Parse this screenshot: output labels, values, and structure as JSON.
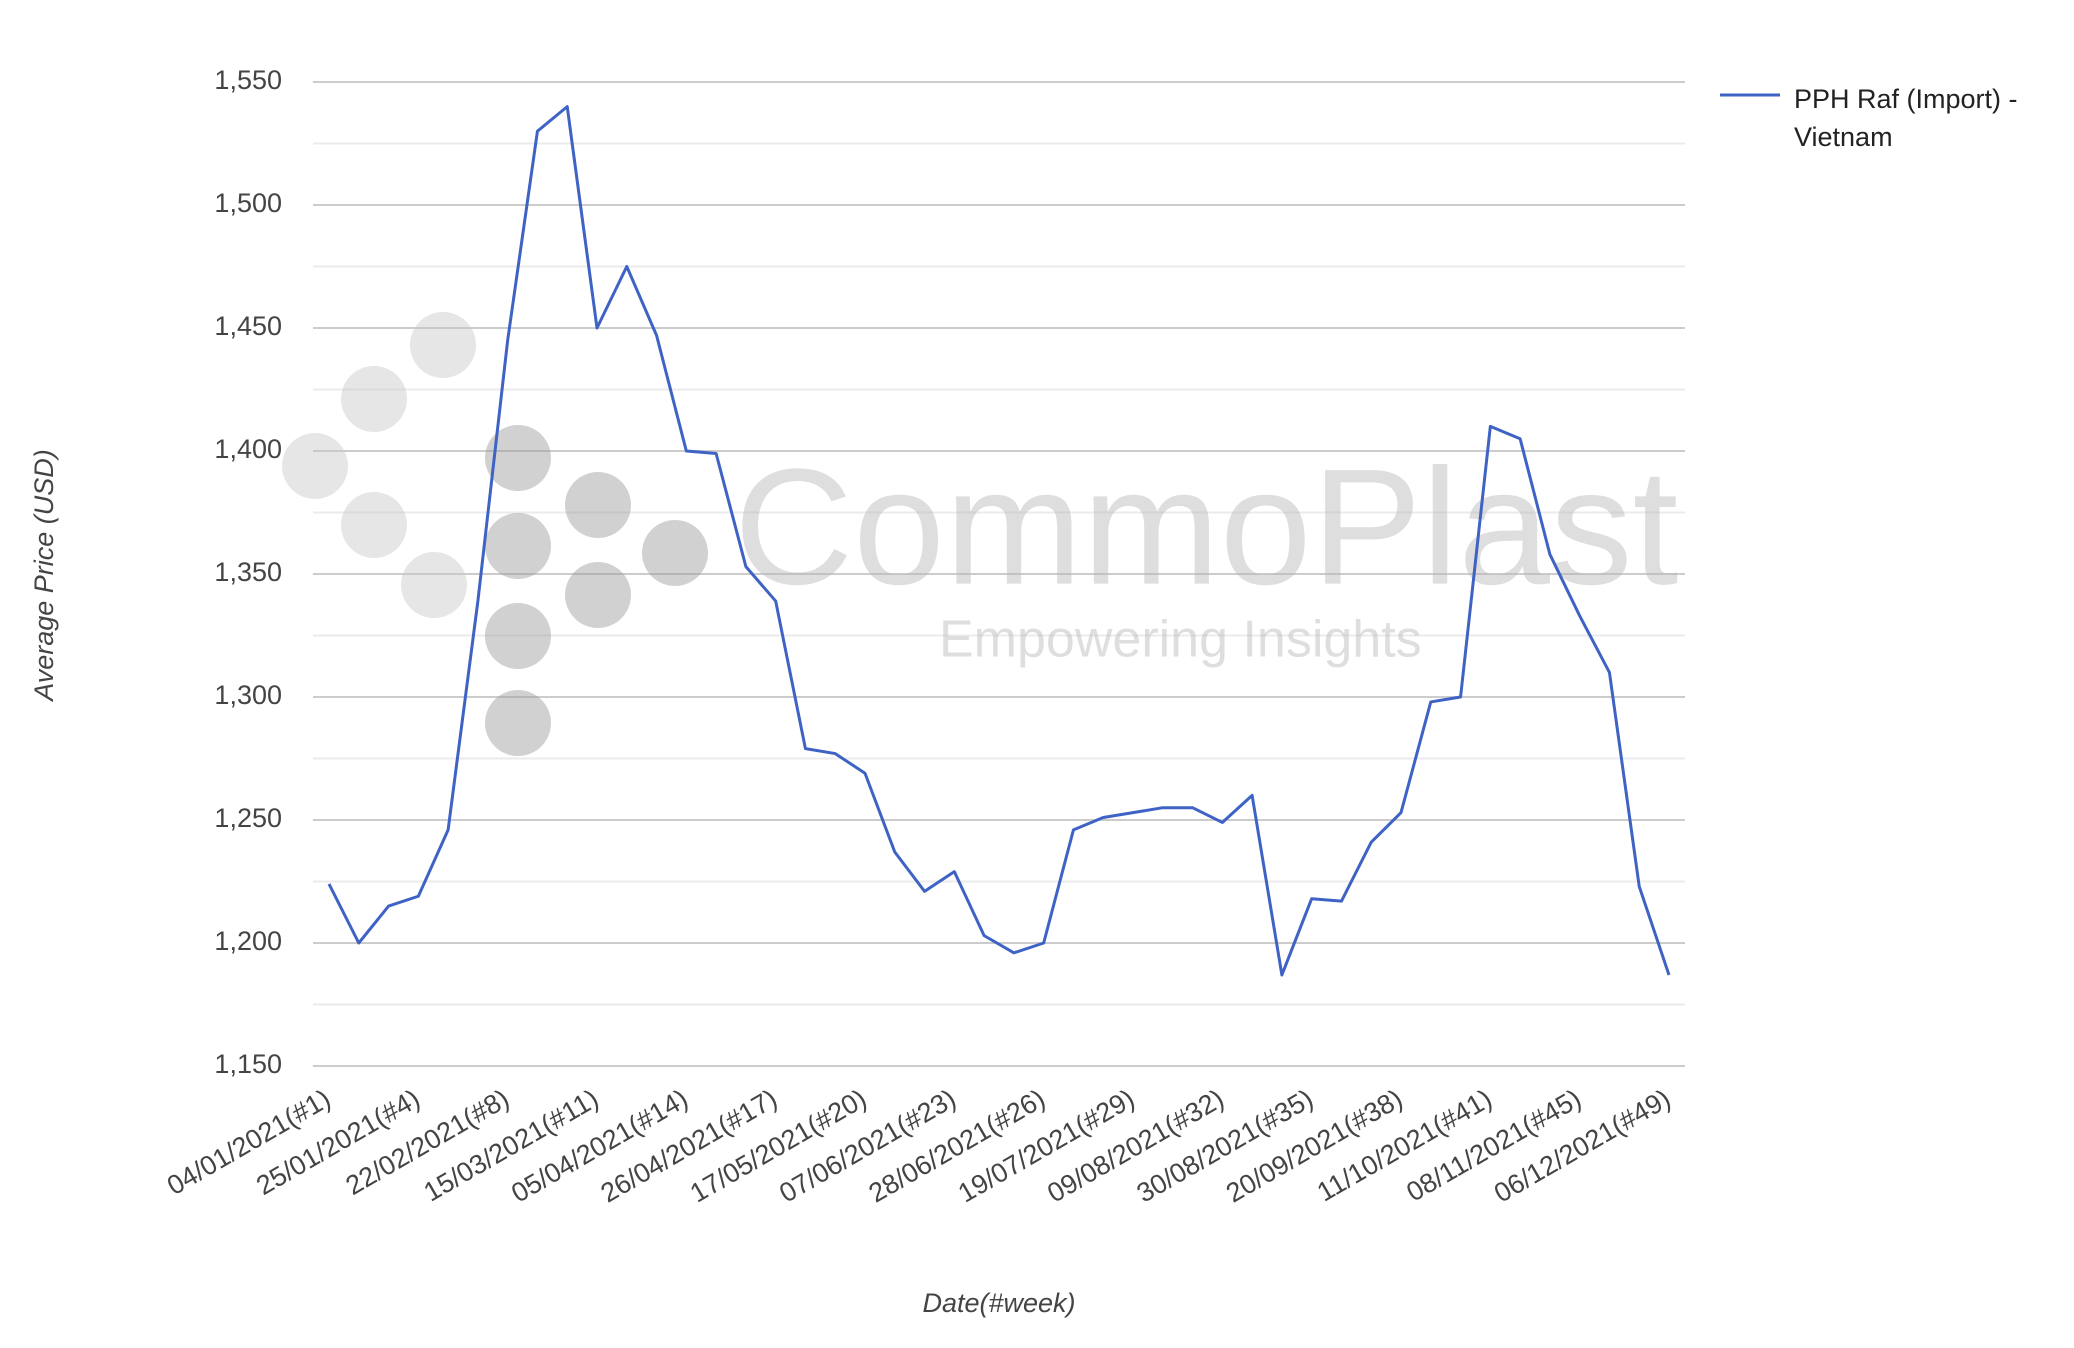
{
  "chart_data": {
    "type": "line",
    "x_label": "Date(#week)",
    "y_label": "Average Price (USD)",
    "categories": [
      "04/01/2021(#1)",
      null,
      null,
      "25/01/2021(#4)",
      null,
      null,
      "22/02/2021(#8)",
      null,
      null,
      "15/03/2021(#11)",
      null,
      null,
      "05/04/2021(#14)",
      null,
      null,
      "26/04/2021(#17)",
      null,
      null,
      "17/05/2021(#20)",
      null,
      null,
      "07/06/2021(#23)",
      null,
      null,
      "28/06/2021(#26)",
      null,
      null,
      "19/07/2021(#29)",
      null,
      null,
      "09/08/2021(#32)",
      null,
      null,
      "30/08/2021(#35)",
      null,
      null,
      "20/09/2021(#38)",
      null,
      null,
      "11/10/2021(#41)",
      null,
      null,
      "08/11/2021(#45)",
      null,
      null,
      "06/12/2021(#49)"
    ],
    "series": [
      {
        "name": "PPH Raf (Import) - Vietnam",
        "color": "#3f63c4",
        "values": [
          1224,
          1200,
          1215,
          1219,
          1246,
          1339,
          1445,
          1530,
          1540,
          1450,
          1475,
          1447,
          1400,
          1399,
          1353,
          1339,
          1279,
          1277,
          1269,
          1237,
          1221,
          1229,
          1203,
          1196,
          1200,
          1246,
          1251,
          1253,
          1255,
          1255,
          1249,
          1260,
          1187,
          1218,
          1217,
          1241,
          1253,
          1298,
          1300,
          1410,
          1405,
          1358,
          1333,
          1310,
          1223,
          1187
        ]
      }
    ],
    "ylim": [
      1150,
      1550
    ],
    "yticks": [
      {
        "value": 1150,
        "label": "1,150"
      },
      {
        "value": 1200,
        "label": "1,200"
      },
      {
        "value": 1250,
        "label": "1,250"
      },
      {
        "value": 1300,
        "label": "1,300"
      },
      {
        "value": 1350,
        "label": "1,350"
      },
      {
        "value": 1400,
        "label": "1,400"
      },
      {
        "value": 1450,
        "label": "1,450"
      },
      {
        "value": 1500,
        "label": "1,500"
      },
      {
        "value": 1550,
        "label": "1,550"
      }
    ],
    "minor_yticks": [
      1175,
      1225,
      1275,
      1325,
      1375,
      1425,
      1475,
      1525
    ],
    "grid": true,
    "legend": "right"
  },
  "watermark": {
    "title": "CommoPlast",
    "subtitle": "Empowering Insights"
  }
}
